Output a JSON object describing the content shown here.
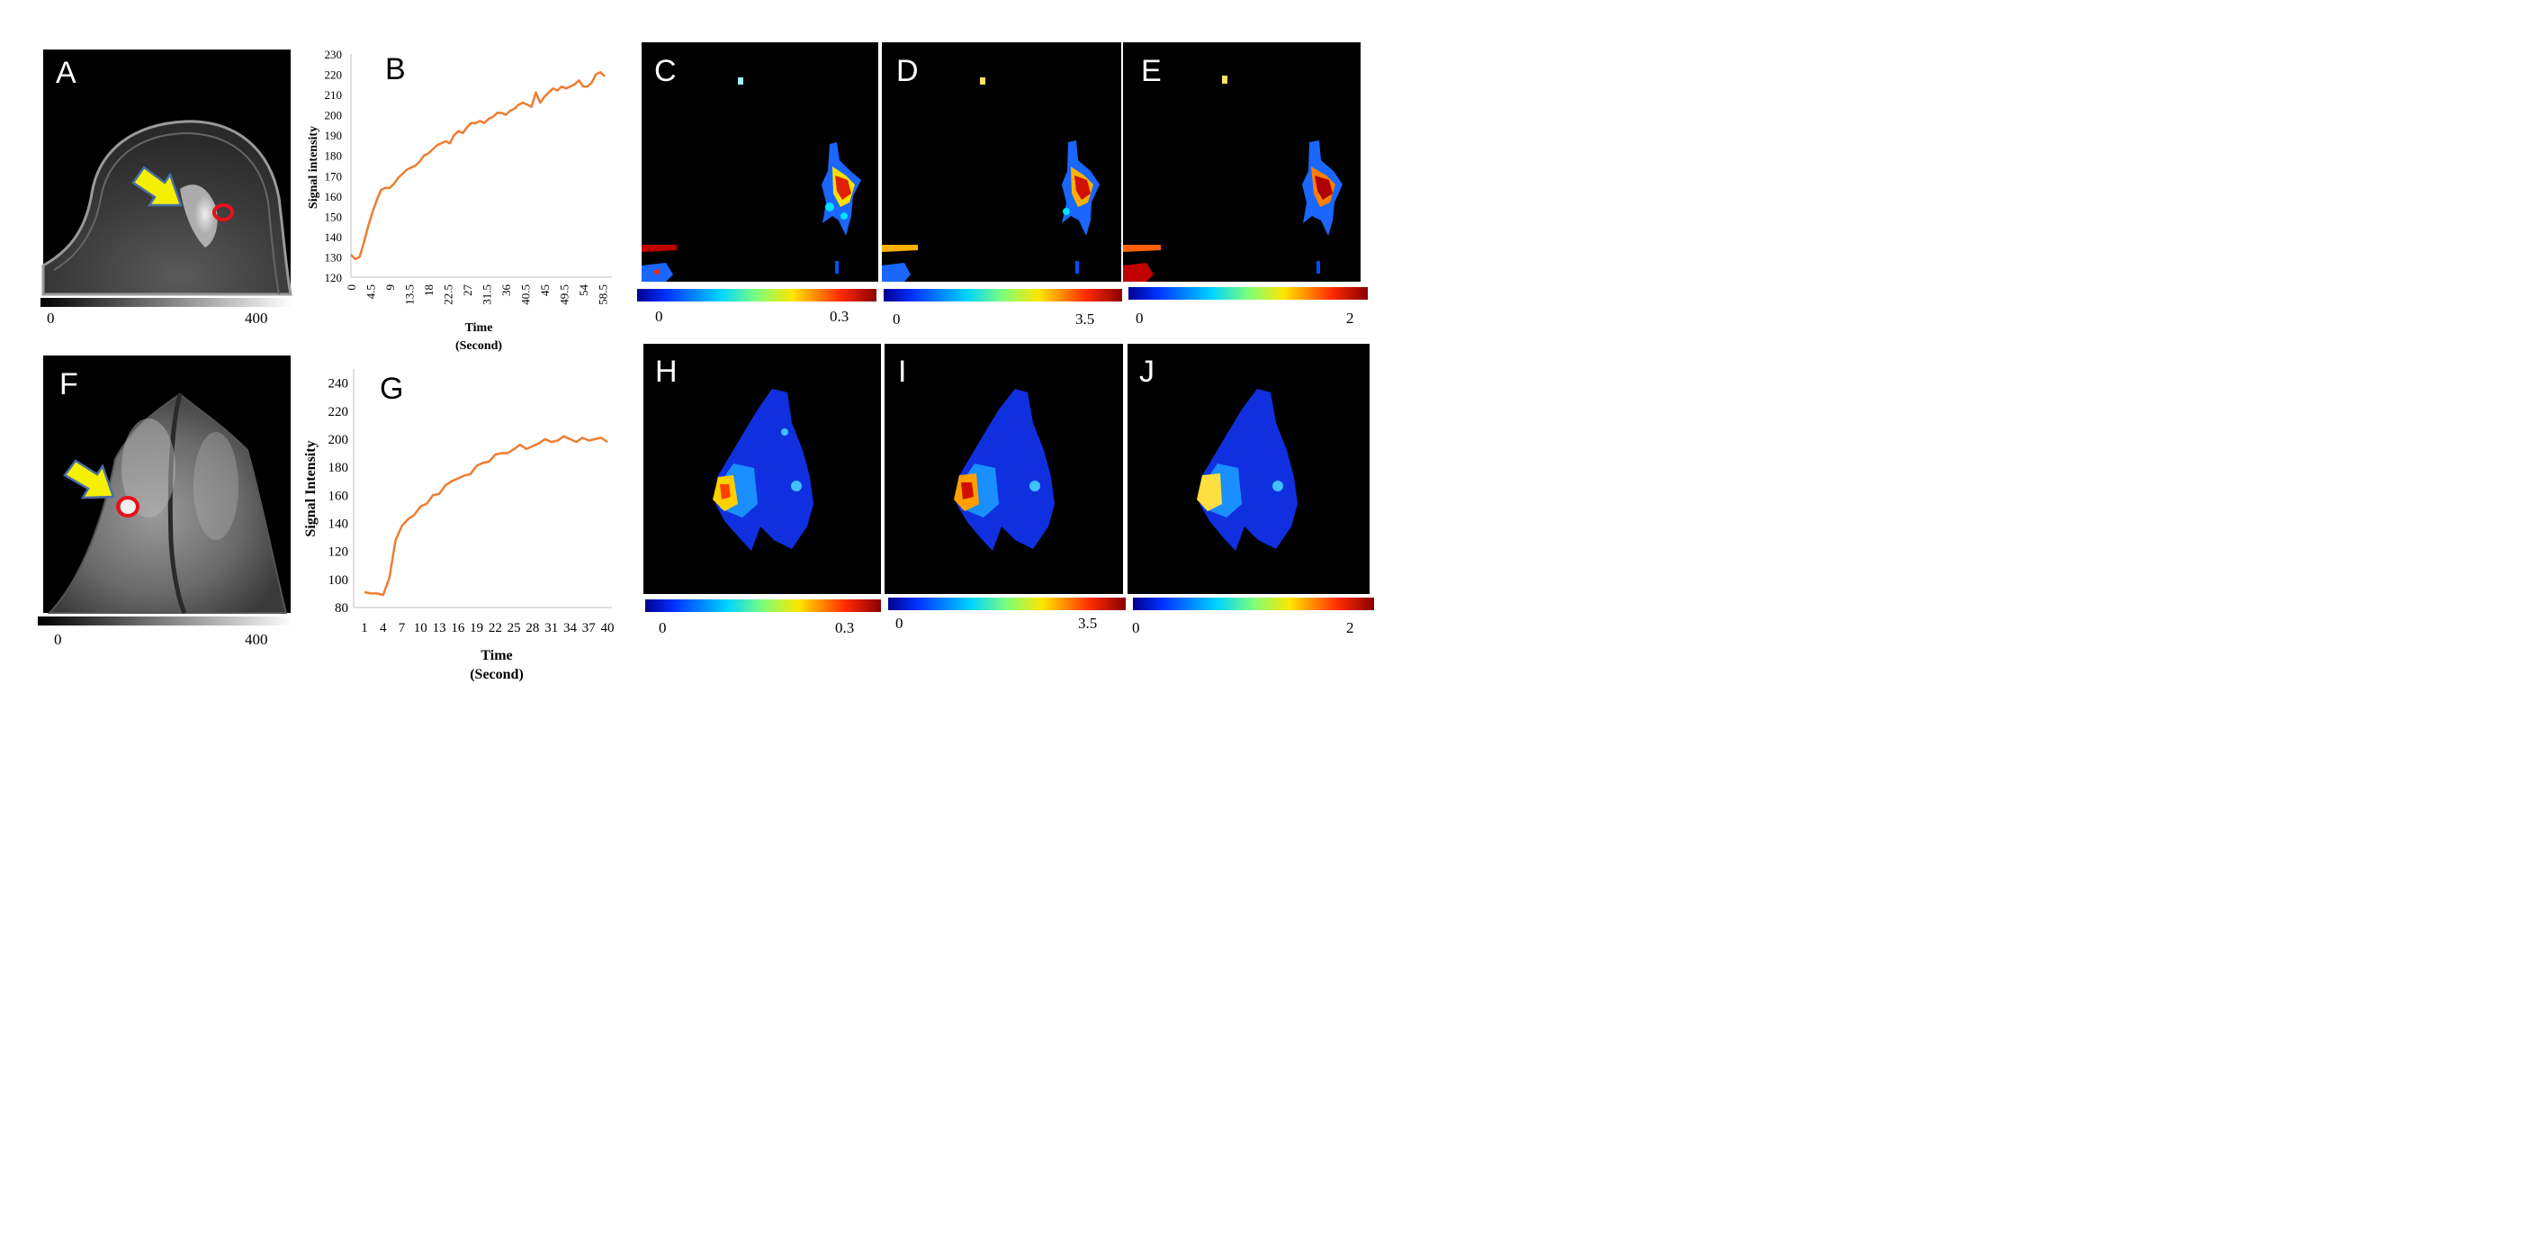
{
  "panels": {
    "a": "A",
    "b": "B",
    "c": "C",
    "d": "D",
    "e": "E",
    "f": "F",
    "g": "G",
    "h": "H",
    "i": "I",
    "j": "J"
  },
  "grayscale_bars": {
    "top": {
      "min": "0",
      "max": "400"
    },
    "bottom": {
      "min": "0",
      "max": "400"
    }
  },
  "colorbars": {
    "c": {
      "min": "0",
      "max": "0.3"
    },
    "d": {
      "min": "0",
      "max": "3.5"
    },
    "e": {
      "min": "0",
      "max": "2"
    },
    "h": {
      "min": "0",
      "max": "0.3"
    },
    "i": {
      "min": "0",
      "max": "3.5"
    },
    "j": {
      "min": "0",
      "max": "2"
    }
  },
  "colors": {
    "curve": "#ED7D31",
    "marker_ring": "#E8101A",
    "arrow": "#F5F000",
    "arrow_edge": "#4A6FA5"
  },
  "chart_data": [
    {
      "panel": "B",
      "type": "line",
      "xlabel": "Time",
      "xlabel2": "(Second)",
      "ylabel": "Signal intensity",
      "ylim": [
        120,
        230
      ],
      "yticks": [
        "120",
        "130",
        "140",
        "150",
        "160",
        "170",
        "180",
        "190",
        "200",
        "210",
        "220",
        "230"
      ],
      "xticks": [
        "0",
        "4.5",
        "9",
        "13.5",
        "18",
        "22.5",
        "27",
        "31.5",
        "36",
        "40.5",
        "45",
        "49.5",
        "54",
        "58.5"
      ],
      "xlim": [
        0,
        59
      ],
      "x": [
        0,
        1,
        2,
        3,
        4,
        5,
        6,
        7,
        8,
        9,
        10,
        11,
        12,
        13,
        14,
        15,
        16,
        17,
        18,
        19,
        20,
        21,
        22,
        23,
        24,
        25,
        26,
        27,
        28,
        29,
        30,
        31,
        32,
        33,
        34,
        35,
        36,
        37,
        38,
        39,
        40,
        41,
        42,
        43,
        44,
        45,
        46,
        47,
        48,
        49,
        50,
        51,
        52,
        53,
        54,
        55,
        56,
        57,
        58,
        59
      ],
      "values": [
        131,
        129,
        130,
        137,
        145,
        152,
        158,
        163,
        164,
        164,
        166,
        169,
        171,
        173,
        174,
        175,
        177,
        180,
        181,
        183,
        185,
        186,
        187,
        186,
        190,
        192,
        191,
        194,
        196,
        196,
        197,
        196,
        198,
        199,
        201,
        201,
        200,
        202,
        203,
        205,
        206,
        205,
        204,
        211,
        206,
        209,
        211,
        213,
        212,
        214,
        213,
        214,
        215,
        217,
        214,
        214,
        216,
        220,
        221,
        219
      ]
    },
    {
      "panel": "G",
      "type": "line",
      "xlabel": "Time",
      "xlabel2": "(Second)",
      "ylabel": "Signal Intensity",
      "ylim": [
        80,
        250
      ],
      "yticks": [
        "80",
        "100",
        "120",
        "140",
        "160",
        "180",
        "200",
        "220",
        "240"
      ],
      "xticks": [
        "1",
        "4",
        "7",
        "10",
        "13",
        "16",
        "19",
        "22",
        "25",
        "28",
        "31",
        "34",
        "37",
        "40"
      ],
      "xlim": [
        1,
        40
      ],
      "x": [
        1,
        2,
        3,
        4,
        5,
        6,
        7,
        8,
        9,
        10,
        11,
        12,
        13,
        14,
        15,
        16,
        17,
        18,
        19,
        20,
        21,
        22,
        23,
        24,
        25,
        26,
        27,
        28,
        29,
        30,
        31,
        32,
        33,
        34,
        35,
        36,
        37,
        38,
        39,
        40
      ],
      "values": [
        91,
        90,
        90,
        89,
        101,
        128,
        138,
        143,
        146,
        152,
        154,
        160,
        161,
        167,
        170,
        172,
        174,
        175,
        181,
        183,
        184,
        189,
        190,
        190,
        193,
        196,
        193,
        195,
        197,
        200,
        198,
        199,
        202,
        200,
        198,
        201,
        199,
        200,
        201,
        198
      ]
    }
  ]
}
